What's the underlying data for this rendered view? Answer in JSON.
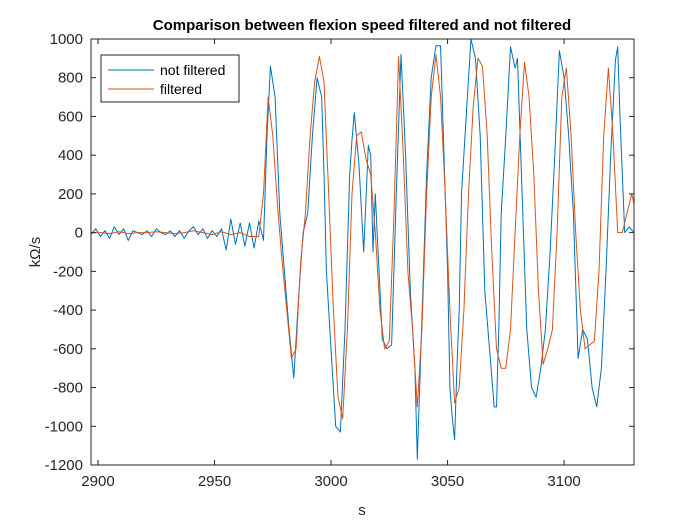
{
  "chart_data": {
    "type": "line",
    "title": "Comparison between flexion speed filtered and not filtered",
    "xlabel": "s",
    "ylabel": "kΩ/s",
    "xlim": [
      2897,
      3130
    ],
    "ylim": [
      -1200,
      1000
    ],
    "xticks": [
      2900,
      2950,
      3000,
      3050,
      3100
    ],
    "xtick_labels": [
      "2900",
      "2950",
      "3000",
      "3050",
      "3100"
    ],
    "yticks": [
      -1200,
      -1000,
      -800,
      -600,
      -400,
      -200,
      0,
      200,
      400,
      600,
      800,
      1000
    ],
    "ytick_labels": [
      "-1200",
      "-1000",
      "-800",
      "-600",
      "-400",
      "-200",
      "0",
      "200",
      "400",
      "600",
      "800",
      "1000"
    ],
    "grid": false,
    "legend_position": "top-left",
    "series": [
      {
        "name": "not filtered",
        "color": "#0072BD",
        "x": [
          2897,
          2899,
          2901,
          2903,
          2905,
          2907,
          2909,
          2911,
          2913,
          2915,
          2917,
          2919,
          2921,
          2923,
          2925,
          2927,
          2929,
          2931,
          2933,
          2935,
          2937,
          2939,
          2941,
          2943,
          2945,
          2947,
          2949,
          2951,
          2953,
          2955,
          2957,
          2959,
          2961,
          2963,
          2965,
          2967,
          2969,
          2971,
          2972.5,
          2974,
          2976,
          2978,
          2980,
          2982,
          2984,
          2986,
          2988,
          2990,
          2992,
          2994,
          2996,
          2997,
          2998,
          3000,
          3002,
          3004,
          3006,
          3008,
          3009,
          3010,
          3012,
          3014,
          3016,
          3017,
          3018,
          3019,
          3020,
          3021,
          3022,
          3024,
          3026,
          3028,
          3030,
          3032,
          3034,
          3036,
          3037,
          3039,
          3041,
          3043,
          3045,
          3047,
          3049,
          3050,
          3051,
          3052,
          3053,
          3054,
          3055,
          3056,
          3058,
          3060,
          3062,
          3064,
          3066,
          3068,
          3070,
          3071,
          3072,
          3073,
          3075,
          3077,
          3079,
          3080,
          3082,
          3084,
          3086,
          3088,
          3090,
          3092,
          3094,
          3096,
          3098,
          3100,
          3102,
          3104,
          3106,
          3108,
          3110,
          3112,
          3114,
          3116,
          3118,
          3120,
          3122,
          3123,
          3124,
          3126,
          3128,
          3130
        ],
        "y": [
          -10,
          20,
          -20,
          10,
          -30,
          30,
          -10,
          20,
          -40,
          10,
          0,
          -10,
          10,
          -20,
          20,
          0,
          -10,
          10,
          -20,
          10,
          -30,
          10,
          30,
          -10,
          20,
          -30,
          10,
          -20,
          20,
          -90,
          70,
          -60,
          50,
          -70,
          50,
          -80,
          60,
          -40,
          500,
          860,
          700,
          100,
          -200,
          -500,
          -750,
          -350,
          0,
          100,
          500,
          800,
          700,
          300,
          -200,
          -600,
          -1000,
          -1030,
          -500,
          300,
          480,
          620,
          350,
          -100,
          450,
          400,
          -100,
          200,
          -50,
          -300,
          -550,
          -600,
          -580,
          200,
          920,
          400,
          -300,
          -700,
          -1170,
          -450,
          300,
          800,
          965,
          965,
          200,
          -200,
          -800,
          -950,
          -1070,
          -700,
          -400,
          200,
          600,
          1000,
          900,
          500,
          -300,
          -600,
          -900,
          -900,
          -500,
          100,
          500,
          960,
          850,
          900,
          200,
          -500,
          -800,
          -850,
          -700,
          -500,
          -100,
          400,
          940,
          800,
          500,
          100,
          -650,
          -500,
          -550,
          -800,
          -900,
          -700,
          -200,
          400,
          890,
          960,
          600,
          0,
          30,
          0
        ]
      },
      {
        "name": "filtered",
        "color": "#D95319",
        "x": [
          2897,
          2901,
          2905,
          2909,
          2913,
          2917,
          2921,
          2925,
          2929,
          2933,
          2937,
          2941,
          2945,
          2949,
          2953,
          2957,
          2961,
          2965,
          2969,
          2971,
          2973,
          2975,
          2977,
          2979,
          2981,
          2983,
          2985,
          2987,
          2989,
          2991,
          2993,
          2995,
          2997,
          2999,
          3001,
          3003,
          3005,
          3007,
          3009,
          3011,
          3013,
          3015,
          3017,
          3019,
          3021,
          3023,
          3025,
          3027,
          3029,
          3031,
          3033,
          3035,
          3037,
          3039,
          3041,
          3043,
          3045,
          3047,
          3049,
          3051,
          3053,
          3055,
          3057,
          3059,
          3061,
          3063,
          3065,
          3067,
          3069,
          3071,
          3073,
          3075,
          3077,
          3079,
          3081,
          3083,
          3085,
          3087,
          3089,
          3091,
          3093,
          3095,
          3097,
          3099,
          3101,
          3103,
          3105,
          3107,
          3109,
          3111,
          3113,
          3115,
          3117,
          3119,
          3121,
          3123,
          3125,
          3127,
          3129,
          3130
        ],
        "y": [
          0,
          0,
          -5,
          5,
          -5,
          0,
          0,
          5,
          0,
          -5,
          0,
          10,
          0,
          -10,
          5,
          -10,
          0,
          -20,
          -20,
          200,
          700,
          500,
          150,
          -150,
          -400,
          -650,
          -600,
          -150,
          100,
          500,
          780,
          910,
          780,
          200,
          -400,
          -850,
          -960,
          -500,
          200,
          500,
          520,
          380,
          300,
          0,
          -400,
          -600,
          -560,
          100,
          910,
          400,
          -200,
          -500,
          -900,
          -500,
          200,
          700,
          920,
          700,
          200,
          -400,
          -880,
          -800,
          -400,
          200,
          650,
          900,
          860,
          500,
          -100,
          -600,
          -700,
          -700,
          -500,
          0,
          500,
          880,
          700,
          300,
          -300,
          -680,
          -600,
          -500,
          0,
          700,
          850,
          500,
          0,
          -400,
          -600,
          -580,
          -560,
          -200,
          500,
          850,
          500,
          0,
          0,
          100,
          200,
          150
        ]
      }
    ]
  }
}
